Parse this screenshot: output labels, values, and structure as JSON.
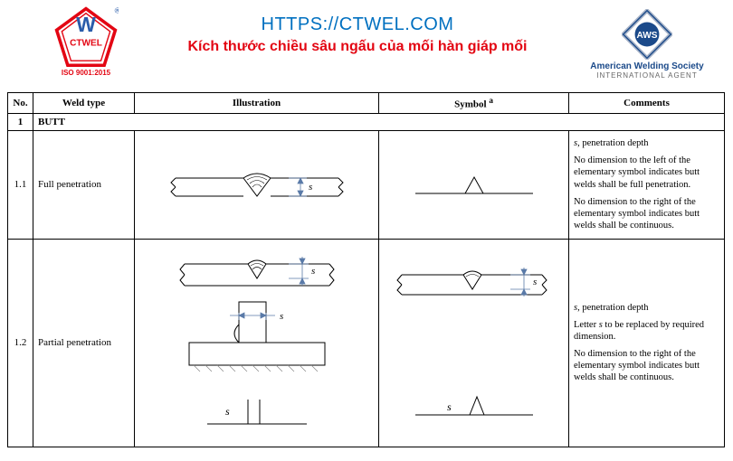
{
  "header": {
    "url": "HTTPS://CTWEL.COM",
    "subtitle": "Kích thước chiều sâu ngấu của mối hàn giáp mối",
    "iso": "ISO 9001:2015",
    "ctwel": "CTWEL",
    "reg": "®",
    "aws_label": "AWS",
    "aws_line1": "American Welding Society",
    "aws_line2": "INTERNATIONAL AGENT"
  },
  "table": {
    "headers": {
      "no": "No.",
      "weld_type": "Weld type",
      "illustration": "Illustration",
      "symbol": "Symbol",
      "symbol_sup": "a",
      "comments": "Comments"
    },
    "section": {
      "no": "1",
      "label": "BUTT"
    },
    "rows": [
      {
        "no": "1.1",
        "type": "Full penetration",
        "comments": [
          "<span class='it'>s</span>, penetration depth",
          "No dimension to the left of the elementary symbol indicates butt welds shall be full penetration.",
          "No dimension to the right of the elementary symbol indicates butt welds shall be continuous."
        ]
      },
      {
        "no": "1.2",
        "type": "Partial penetration",
        "comments": [
          "<span class='it'>s</span>, penetration depth",
          "Letter <span class='it'>s</span> to be replaced by required dimension.",
          "No dimension to the right of the elementary symbol indicates butt welds shall be continuous."
        ]
      }
    ]
  },
  "styling": {
    "colors": {
      "url": "#0070c0",
      "subtitle": "#e30613",
      "aws_blue": "#1b4a8a",
      "stroke": "#000000",
      "dim_blue": "#5a7aa8",
      "hatch": "#888888"
    },
    "row_heights": {
      "r11": 120,
      "r12": 220
    }
  }
}
